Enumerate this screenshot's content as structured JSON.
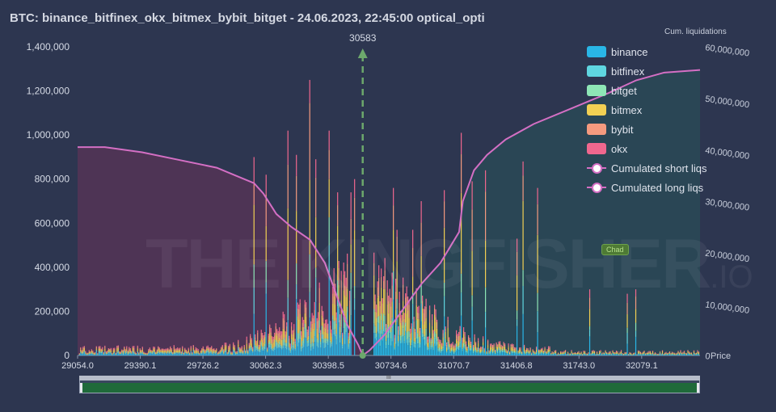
{
  "title": "BTC: binance_bitfinex_okx_bitmex_bybit_bitget - 24.06.2023, 22:45:00 optical_opti",
  "watermark": "THE KINGFISHER",
  "watermark_suffix": ".IO",
  "badge": "Chad",
  "colors": {
    "background": "#2d3650",
    "binance": "#29b6e6",
    "bitfinex": "#5fd6e0",
    "bitget": "#8ee6b6",
    "bitmex": "#f2d053",
    "bybit": "#f59a7f",
    "okx": "#f0678e",
    "cum_line": "#d46fc4",
    "marker": "#6ca86c",
    "short_area": "rgba(120,50,90,0.45)",
    "long_area": "rgba(40,90,90,0.45)"
  },
  "chart_data": {
    "type": "bar",
    "stacked": true,
    "price_marker": {
      "value": 30583,
      "label": "30583"
    },
    "x_ticks": [
      "29054.0",
      "29390.1",
      "29726.2",
      "30062.3",
      "30398.5",
      "30734.6",
      "31070.7",
      "31406.8",
      "31743.0",
      "32079.1"
    ],
    "x_tick_values": [
      29054.0,
      29390.1,
      29726.2,
      30062.3,
      30398.5,
      30734.6,
      31070.7,
      31406.8,
      31743.0,
      32079.1
    ],
    "xlim": [
      29054.0,
      32392.0
    ],
    "left_axis": {
      "ticks": [
        "0",
        "200,000",
        "400,000",
        "600,000",
        "800,000",
        "1,000,000",
        "1,200,000",
        "1,400,000"
      ],
      "ylim": [
        0,
        1400000
      ]
    },
    "right_axis": {
      "title": "Cum. liquidations",
      "ticks": [
        "0",
        "10,000,000",
        "20,000,000",
        "30,000,000",
        "40,000,000",
        "50,000,000",
        "60,000,000"
      ],
      "unit_label": "Price",
      "ylim": [
        0,
        60000000
      ]
    },
    "legend": [
      {
        "name": "binance",
        "kind": "box",
        "color": "#29b6e6"
      },
      {
        "name": "bitfinex",
        "kind": "box",
        "color": "#5fd6e0"
      },
      {
        "name": "bitget",
        "kind": "box",
        "color": "#8ee6b6"
      },
      {
        "name": "bitmex",
        "kind": "box",
        "color": "#f2d053"
      },
      {
        "name": "bybit",
        "kind": "box",
        "color": "#f59a7f"
      },
      {
        "name": "okx",
        "kind": "box",
        "color": "#f0678e"
      },
      {
        "name": "Cumulated short liqs",
        "kind": "line",
        "color": "#d46fc4"
      },
      {
        "name": "Cumulated long liqs",
        "kind": "line",
        "color": "#d46fc4"
      }
    ],
    "peaks": [
      [
        30000,
        900000
      ],
      [
        30062,
        820000
      ],
      [
        30180,
        1020000
      ],
      [
        30230,
        910000
      ],
      [
        30300,
        1250000
      ],
      [
        30330,
        890000
      ],
      [
        30400,
        1020000
      ],
      [
        30450,
        740000
      ],
      [
        30520,
        740000
      ],
      [
        30540,
        800000
      ],
      [
        30750,
        760000
      ],
      [
        30770,
        570000
      ],
      [
        30850,
        570000
      ],
      [
        30900,
        700000
      ],
      [
        31020,
        750000
      ],
      [
        31110,
        1010000
      ],
      [
        31170,
        790000
      ],
      [
        31240,
        840000
      ],
      [
        31410,
        530000
      ],
      [
        31440,
        880000
      ],
      [
        31520,
        760000
      ],
      [
        31800,
        300000
      ],
      [
        32000,
        280000
      ],
      [
        32050,
        300000
      ]
    ],
    "cum_long_liqs": [
      [
        29054,
        40500000
      ],
      [
        29200,
        40500000
      ],
      [
        29400,
        39500000
      ],
      [
        29600,
        38000000
      ],
      [
        29800,
        36500000
      ],
      [
        29900,
        35000000
      ],
      [
        30000,
        33500000
      ],
      [
        30050,
        31500000
      ],
      [
        30120,
        27500000
      ],
      [
        30200,
        25000000
      ],
      [
        30300,
        22500000
      ],
      [
        30380,
        18000000
      ],
      [
        30450,
        11000000
      ],
      [
        30500,
        6000000
      ],
      [
        30560,
        2000000
      ],
      [
        30583,
        0
      ]
    ],
    "cum_short_liqs": [
      [
        30583,
        0
      ],
      [
        30620,
        1000000
      ],
      [
        30700,
        4000000
      ],
      [
        30800,
        9000000
      ],
      [
        30900,
        14000000
      ],
      [
        31000,
        18000000
      ],
      [
        31050,
        21000000
      ],
      [
        31100,
        24000000
      ],
      [
        31120,
        30000000
      ],
      [
        31180,
        36000000
      ],
      [
        31250,
        39000000
      ],
      [
        31350,
        42000000
      ],
      [
        31500,
        45000000
      ],
      [
        31700,
        48000000
      ],
      [
        31900,
        51000000
      ],
      [
        32050,
        53500000
      ],
      [
        32200,
        55000000
      ],
      [
        32392,
        55500000
      ]
    ]
  }
}
